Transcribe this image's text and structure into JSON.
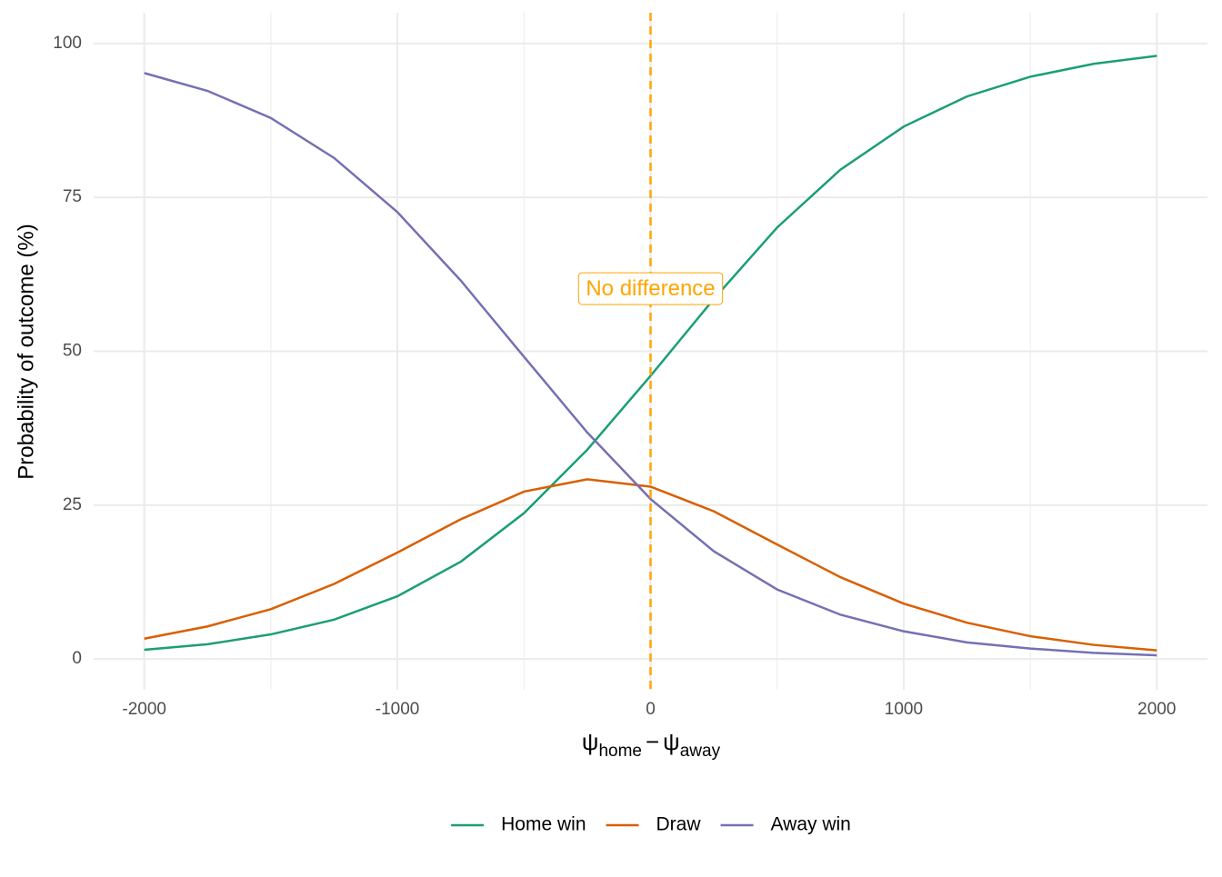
{
  "chart_data": {
    "type": "line",
    "x_label": [
      "ψ",
      "home",
      "−",
      "ψ",
      "away"
    ],
    "y_label": "Probability of outcome (%)",
    "x": [
      -2000,
      -1750,
      -1500,
      -1250,
      -1000,
      -750,
      -500,
      -250,
      0,
      250,
      500,
      750,
      1000,
      1250,
      1500,
      1750,
      2000
    ],
    "series": [
      {
        "name": "Home win",
        "color": "#1b9e77",
        "values": [
          1.5,
          2.4,
          4.0,
          6.4,
          10.2,
          15.8,
          23.7,
          34.0,
          46.0,
          58.5,
          70.1,
          79.5,
          86.5,
          91.4,
          94.6,
          96.7,
          98.0
        ]
      },
      {
        "name": "Draw",
        "color": "#d95f02",
        "values": [
          3.3,
          5.3,
          8.1,
          12.2,
          17.3,
          22.7,
          27.2,
          29.2,
          28.0,
          24.0,
          18.6,
          13.3,
          9.0,
          5.9,
          3.7,
          2.3,
          1.4
        ]
      },
      {
        "name": "Away win",
        "color": "#7570b3",
        "values": [
          95.2,
          92.3,
          87.9,
          81.4,
          72.6,
          61.5,
          49.1,
          36.8,
          26.0,
          17.5,
          11.3,
          7.2,
          4.5,
          2.7,
          1.7,
          1.0,
          0.6
        ]
      }
    ],
    "xlim": [
      -2200,
      2200
    ],
    "ylim": [
      -5,
      105
    ],
    "xticks": [
      -2000,
      -1000,
      0,
      1000,
      2000
    ],
    "xminor": [
      -1500,
      -500,
      500,
      1500
    ],
    "yticks": [
      0,
      25,
      50,
      75,
      100
    ],
    "grid": true,
    "legend": "bottom",
    "vline": {
      "x": 0,
      "color": "#FFA500",
      "label": "No difference",
      "label_y": 60
    }
  }
}
